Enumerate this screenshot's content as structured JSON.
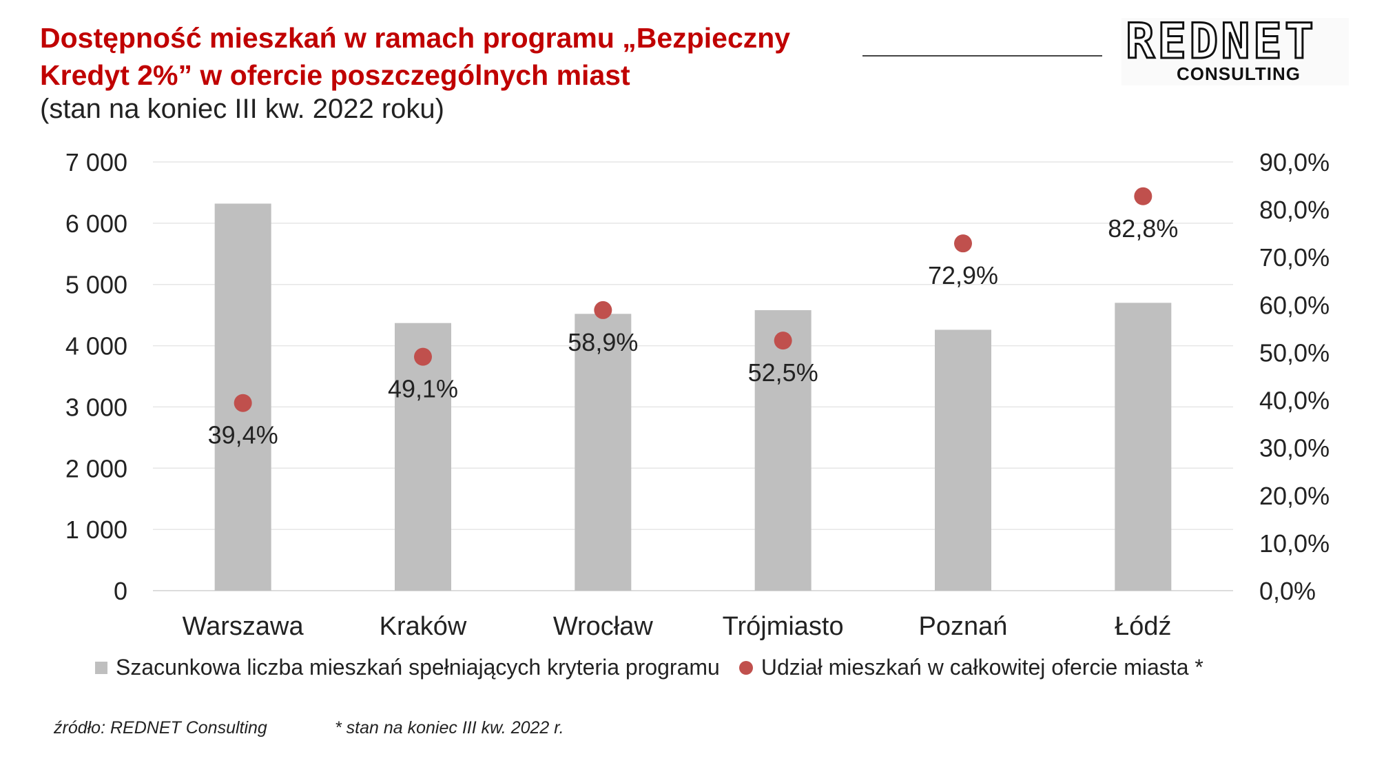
{
  "header": {
    "title": "Dostępność mieszkań w ramach programu „Bezpieczny Kredyt 2%” w ofercie poszczególnych miast",
    "subtitle": "(stan na koniec III kw. 2022 roku)"
  },
  "logo": {
    "main": "REDNET",
    "sub": "CONSULTING"
  },
  "footer": {
    "source": "źródło: REDNET Consulting",
    "note": "* stan na koniec III kw. 2022 r."
  },
  "colors": {
    "title": "#c00000",
    "bars": "#bfbfbf",
    "dots": "#c0504d",
    "grid": "#e6e6e6"
  },
  "chart_data": {
    "type": "bar",
    "categories": [
      "Warszawa",
      "Kraków",
      "Wrocław",
      "Trójmiasto",
      "Poznań",
      "Łódź"
    ],
    "series": [
      {
        "name": "Szacunkowa liczba mieszkań spełniających kryteria programu",
        "type": "bar",
        "axis": "left",
        "values": [
          6320,
          4370,
          4520,
          4580,
          4260,
          4700
        ]
      },
      {
        "name": "Udział mieszkań w całkowitej ofercie miasta *",
        "type": "scatter",
        "axis": "right",
        "values": [
          39.4,
          49.1,
          58.9,
          52.5,
          72.9,
          82.8
        ],
        "labels": [
          "39,4%",
          "49,1%",
          "58,9%",
          "52,5%",
          "72,9%",
          "82,8%"
        ]
      }
    ],
    "y_left": {
      "ylim": [
        0,
        7000
      ],
      "ticks": [
        "0",
        "1 000",
        "2 000",
        "3 000",
        "4 000",
        "5 000",
        "6 000",
        "7 000"
      ]
    },
    "y_right": {
      "ylim": [
        0,
        90
      ],
      "ticks": [
        "0,0%",
        "10,0%",
        "20,0%",
        "30,0%",
        "40,0%",
        "50,0%",
        "60,0%",
        "70,0%",
        "80,0%",
        "90,0%"
      ]
    },
    "grid": true,
    "legend_position": "bottom"
  }
}
